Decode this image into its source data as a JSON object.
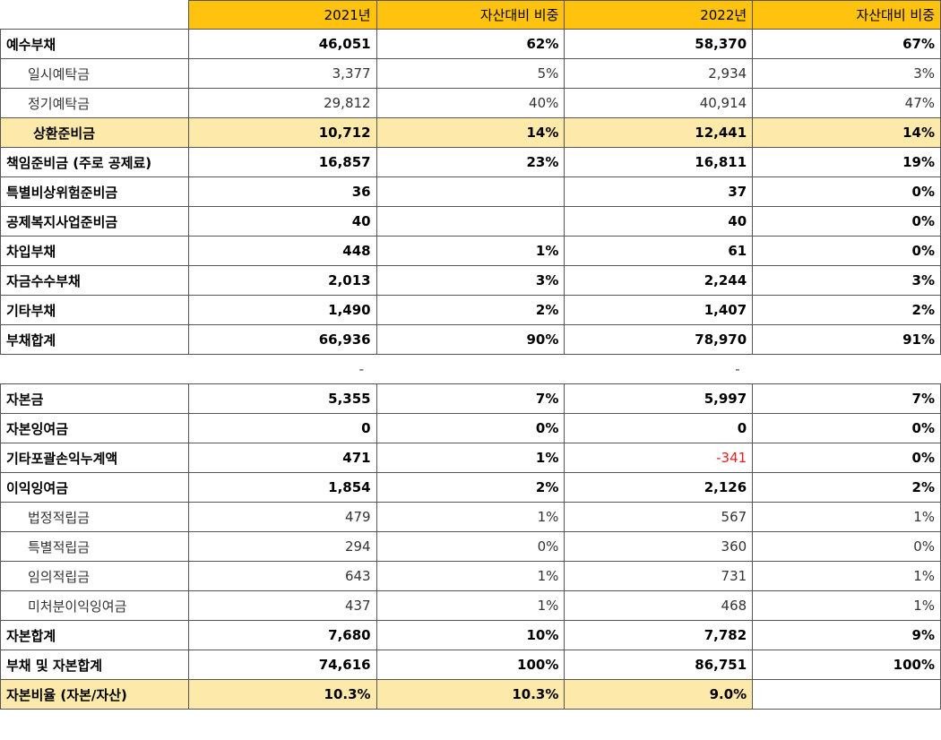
{
  "table": {
    "header": [
      null,
      "2021년",
      "자산대비 비중",
      "2022년",
      "자산대비 비중"
    ],
    "rows": [
      [
        "예수부채",
        "46,051",
        "62%",
        "58,370",
        "67%"
      ],
      [
        "일시예탁금",
        "3,377",
        "5%",
        "2,934",
        "3%"
      ],
      [
        "정기예탁금",
        "29,812",
        "40%",
        "40,914",
        "47%"
      ],
      [
        "상환준비금",
        "10,712",
        "14%",
        "12,441",
        "14%"
      ],
      [
        "책임준비금 (주로 공제료)",
        "16,857",
        "23%",
        "16,811",
        "19%"
      ],
      [
        "특별비상위험준비금",
        "36",
        null,
        "37",
        "0%"
      ],
      [
        "공제복지사업준비금",
        "40",
        null,
        "40",
        "0%"
      ],
      [
        "차입부채",
        "448",
        "1%",
        "61",
        "0%"
      ],
      [
        "자금수수부채",
        "2,013",
        "3%",
        "2,244",
        "3%"
      ],
      [
        "기타부채",
        "1,490",
        "2%",
        "1,407",
        "2%"
      ],
      [
        "부채합계",
        "66,936",
        "90%",
        "78,970",
        "91%"
      ],
      [
        null,
        "-",
        null,
        "-",
        null
      ],
      [
        "자본금",
        "5,355",
        "7%",
        "5,997",
        "7%"
      ],
      [
        "자본잉여금",
        "0",
        "0%",
        "0",
        "0%"
      ],
      [
        "기타포괄손익누계액",
        "471",
        "1%",
        "-341",
        "0%"
      ],
      [
        "이익잉여금",
        "1,854",
        "2%",
        "2,126",
        "2%"
      ],
      [
        "법정적립금",
        "479",
        "1%",
        "567",
        "1%"
      ],
      [
        "특별적립금",
        "294",
        "0%",
        "360",
        "0%"
      ],
      [
        "임의적립금",
        "643",
        "1%",
        "731",
        "1%"
      ],
      [
        "미처분이익잉여금",
        "437",
        "1%",
        "468",
        "1%"
      ],
      [
        "자본합계",
        "7,680",
        "10%",
        "7,782",
        "9%"
      ],
      [
        "부채 및 자본합계",
        "74,616",
        "100%",
        "86,751",
        "100%"
      ],
      [
        "자본비율 (자본/자산)",
        "10.3%",
        "10.3%",
        "9.0%",
        null
      ]
    ]
  }
}
